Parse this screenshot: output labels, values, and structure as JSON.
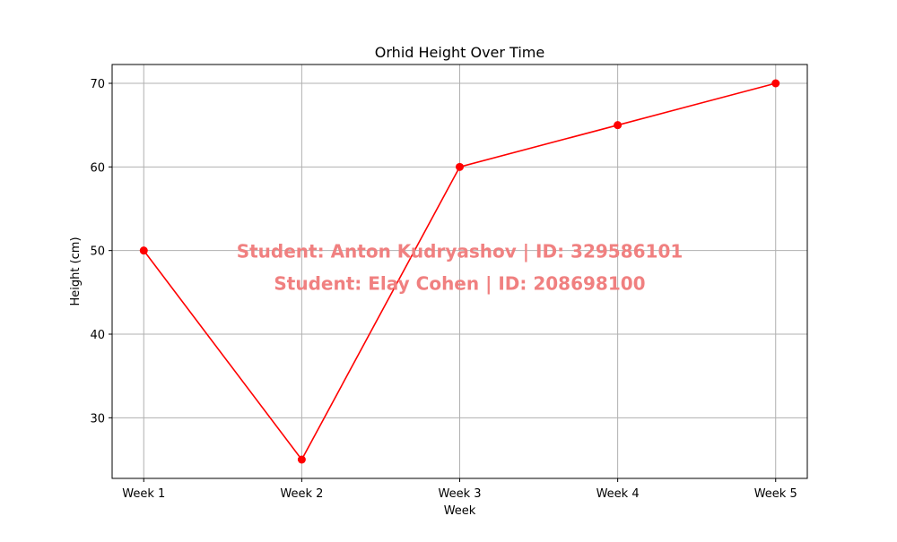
{
  "chart_data": {
    "type": "line",
    "title": "Orhid Height Over Time",
    "xlabel": "Week",
    "ylabel": "Height (cm)",
    "categories": [
      "Week 1",
      "Week 2",
      "Week 3",
      "Week 4",
      "Week 5"
    ],
    "series": [
      {
        "values": [
          50,
          25,
          60,
          65,
          70
        ],
        "color": "#ff0000",
        "marker": "circle"
      }
    ],
    "ylim": [
      22.75,
      72.25
    ],
    "yticks": [
      30,
      40,
      50,
      60,
      70
    ],
    "grid": true,
    "legend": "none",
    "annotations": [
      "Student: Anton Kudryashov | ID: 329586101",
      "Student: Elay Cohen | ID: 208698100"
    ],
    "annotation_color": "#f08080"
  }
}
